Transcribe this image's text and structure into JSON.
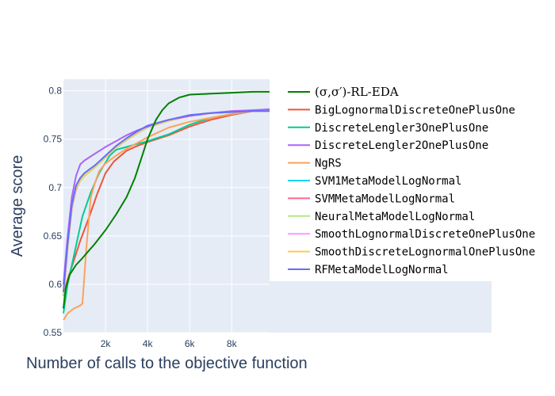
{
  "chart_data": {
    "type": "line",
    "xlabel": "Number of calls to the objective function",
    "ylabel": "Average score",
    "xlim": [
      0,
      9800
    ],
    "ylim": [
      0.55,
      0.812
    ],
    "x_ticks": [
      2000,
      4000,
      6000,
      8000
    ],
    "x_tick_labels": [
      "2k",
      "4k",
      "6k",
      "8k"
    ],
    "y_ticks": [
      0.55,
      0.6,
      0.65,
      0.7,
      0.75,
      0.8
    ],
    "y_tick_labels": [
      "0.55",
      "0.6",
      "0.65",
      "0.7",
      "0.75",
      "0.8"
    ],
    "grid": true,
    "legend_position": "right",
    "background_color": "#e5ecf6",
    "series": [
      {
        "name": "(σ,σ′)-RL-EDA",
        "color": "#008000",
        "x": [
          0,
          100,
          300,
          600,
          900,
          1100,
          1500,
          2000,
          2500,
          3000,
          3400,
          3700,
          4000,
          4400,
          4700,
          5000,
          5500,
          6000,
          7000,
          8000,
          9000,
          9800
        ],
        "y": [
          0.575,
          0.595,
          0.61,
          0.62,
          0.627,
          0.632,
          0.642,
          0.656,
          0.672,
          0.69,
          0.71,
          0.73,
          0.75,
          0.77,
          0.78,
          0.787,
          0.793,
          0.796,
          0.797,
          0.798,
          0.799,
          0.799
        ]
      },
      {
        "name": "BigLognormalDiscreteOnePlusOne",
        "color": "#ef553b",
        "x": [
          0,
          200,
          500,
          800,
          1200,
          1600,
          2000,
          2400,
          3000,
          3500,
          4000,
          5000,
          6000,
          7000,
          8000,
          9000,
          9800
        ],
        "y": [
          0.59,
          0.605,
          0.625,
          0.645,
          0.668,
          0.693,
          0.715,
          0.727,
          0.738,
          0.743,
          0.747,
          0.754,
          0.763,
          0.77,
          0.775,
          0.779,
          0.78
        ]
      },
      {
        "name": "DiscreteLengler3OnePlusOne",
        "color": "#00cc96",
        "x": [
          0,
          200,
          500,
          900,
          1300,
          1700,
          2200,
          2500,
          3000,
          3500,
          4000,
          5000,
          6000,
          7000,
          8000,
          9000,
          9800
        ],
        "y": [
          0.57,
          0.6,
          0.63,
          0.67,
          0.695,
          0.715,
          0.733,
          0.739,
          0.742,
          0.745,
          0.748,
          0.755,
          0.765,
          0.772,
          0.776,
          0.779,
          0.78
        ]
      },
      {
        "name": "DiscreteLengler2OnePlusOne",
        "color": "#ab63fa",
        "x": [
          0,
          200,
          400,
          600,
          800,
          1000,
          1500,
          2000,
          2500,
          3000,
          3500,
          4000,
          4500,
          5000,
          6000,
          7000,
          8000,
          9000,
          9800
        ],
        "y": [
          0.6,
          0.65,
          0.69,
          0.712,
          0.724,
          0.728,
          0.735,
          0.742,
          0.748,
          0.754,
          0.759,
          0.763,
          0.767,
          0.77,
          0.774,
          0.777,
          0.779,
          0.78,
          0.781
        ]
      },
      {
        "name": "NgRS",
        "color": "#ffa15a",
        "x": [
          0,
          200,
          500,
          800,
          900,
          1100,
          1300,
          1500,
          1700,
          2000,
          2500,
          3000,
          3500,
          4000,
          5000,
          6000,
          7000,
          8000,
          9000,
          9800
        ],
        "y": [
          0.563,
          0.57,
          0.575,
          0.578,
          0.58,
          0.64,
          0.69,
          0.705,
          0.717,
          0.725,
          0.733,
          0.74,
          0.746,
          0.752,
          0.762,
          0.768,
          0.772,
          0.776,
          0.779,
          0.781
        ]
      },
      {
        "name": "SVM1MetaModelLogNormal",
        "color": "#19d3f3",
        "x": [
          0,
          200,
          400,
          600,
          800,
          1000,
          1500,
          2000,
          2500,
          3000,
          3500,
          4000,
          5000,
          6000,
          7000,
          8000,
          9000,
          9800
        ],
        "y": [
          0.59,
          0.64,
          0.68,
          0.7,
          0.708,
          0.713,
          0.722,
          0.732,
          0.742,
          0.75,
          0.757,
          0.763,
          0.769,
          0.774,
          0.777,
          0.778,
          0.779,
          0.779
        ]
      },
      {
        "name": "SVMMetaModelLogNormal",
        "color": "#ff6692",
        "x": [
          0,
          200,
          400,
          600,
          800,
          1000,
          1500,
          2000,
          2500,
          3000,
          3500,
          4000,
          5000,
          6000,
          7000,
          8000,
          9000,
          9800
        ],
        "y": [
          0.588,
          0.638,
          0.678,
          0.698,
          0.707,
          0.712,
          0.721,
          0.731,
          0.741,
          0.749,
          0.756,
          0.762,
          0.769,
          0.774,
          0.777,
          0.778,
          0.779,
          0.779
        ]
      },
      {
        "name": "NeuralMetaModelLogNormal",
        "color": "#b6e880",
        "x": [
          0,
          200,
          400,
          600,
          800,
          1000,
          1500,
          2000,
          2500,
          3000,
          3500,
          4000,
          5000,
          6000,
          7000,
          8000,
          9000,
          9800
        ],
        "y": [
          0.589,
          0.639,
          0.679,
          0.699,
          0.707,
          0.712,
          0.721,
          0.731,
          0.741,
          0.749,
          0.756,
          0.762,
          0.769,
          0.774,
          0.777,
          0.778,
          0.779,
          0.779
        ]
      },
      {
        "name": "SmoothLognormalDiscreteOnePlusOne",
        "color": "#ff97ff",
        "x": [
          0,
          200,
          400,
          600,
          800,
          1000,
          1500,
          2000,
          2500,
          3000,
          3500,
          4000,
          5000,
          6000,
          7000,
          8000,
          9000,
          9800
        ],
        "y": [
          0.591,
          0.641,
          0.681,
          0.701,
          0.709,
          0.714,
          0.722,
          0.732,
          0.742,
          0.75,
          0.757,
          0.763,
          0.769,
          0.774,
          0.777,
          0.778,
          0.779,
          0.779
        ]
      },
      {
        "name": "SmoothDiscreteLognormalOnePlusOne",
        "color": "#fecb52",
        "x": [
          0,
          200,
          400,
          600,
          800,
          1000,
          1500,
          2000,
          2500,
          3000,
          3500,
          4000,
          5000,
          6000,
          7000,
          8000,
          9000,
          9800
        ],
        "y": [
          0.59,
          0.64,
          0.68,
          0.7,
          0.708,
          0.713,
          0.722,
          0.732,
          0.742,
          0.75,
          0.757,
          0.763,
          0.769,
          0.774,
          0.777,
          0.778,
          0.779,
          0.779
        ]
      },
      {
        "name": "RFMetaModelLogNormal",
        "color": "#636efa",
        "x": [
          0,
          200,
          400,
          600,
          800,
          1000,
          1500,
          2000,
          2500,
          3000,
          3500,
          4000,
          5000,
          6000,
          7000,
          8000,
          9000,
          9800
        ],
        "y": [
          0.592,
          0.642,
          0.682,
          0.702,
          0.71,
          0.715,
          0.723,
          0.733,
          0.743,
          0.751,
          0.758,
          0.764,
          0.77,
          0.775,
          0.777,
          0.778,
          0.779,
          0.779
        ]
      }
    ]
  }
}
